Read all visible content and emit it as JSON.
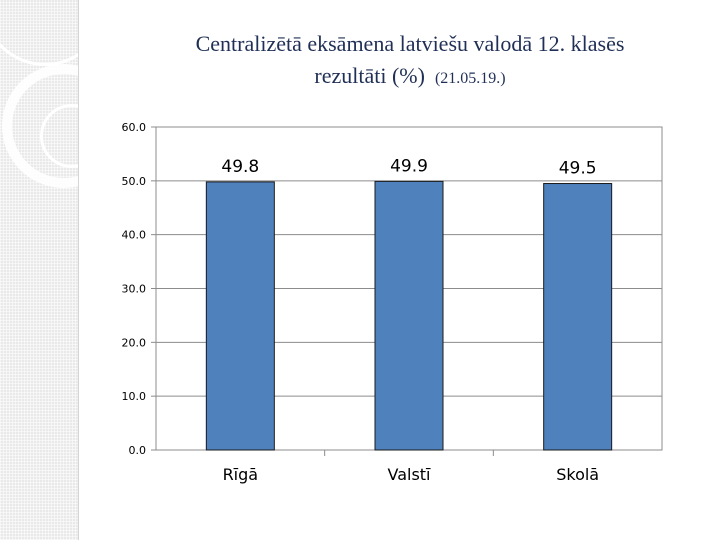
{
  "title_line1": "Centralizētā eksāmena latviešu valodā 12. klasēs",
  "title_line2": "rezultāti (%)",
  "title_date": "(21.05.19.)",
  "chart_data": {
    "type": "bar",
    "categories": [
      "Rīgā",
      "Valstī",
      "Skolā"
    ],
    "values": [
      49.8,
      49.9,
      49.5
    ],
    "value_labels": [
      "49.8",
      "49.9",
      "49.5"
    ],
    "ylim": [
      0,
      60
    ],
    "yticks": [
      "0.0",
      "10.0",
      "20.0",
      "30.0",
      "40.0",
      "50.0",
      "60.0"
    ],
    "bar_color": "#4f81bd",
    "grid": true
  }
}
